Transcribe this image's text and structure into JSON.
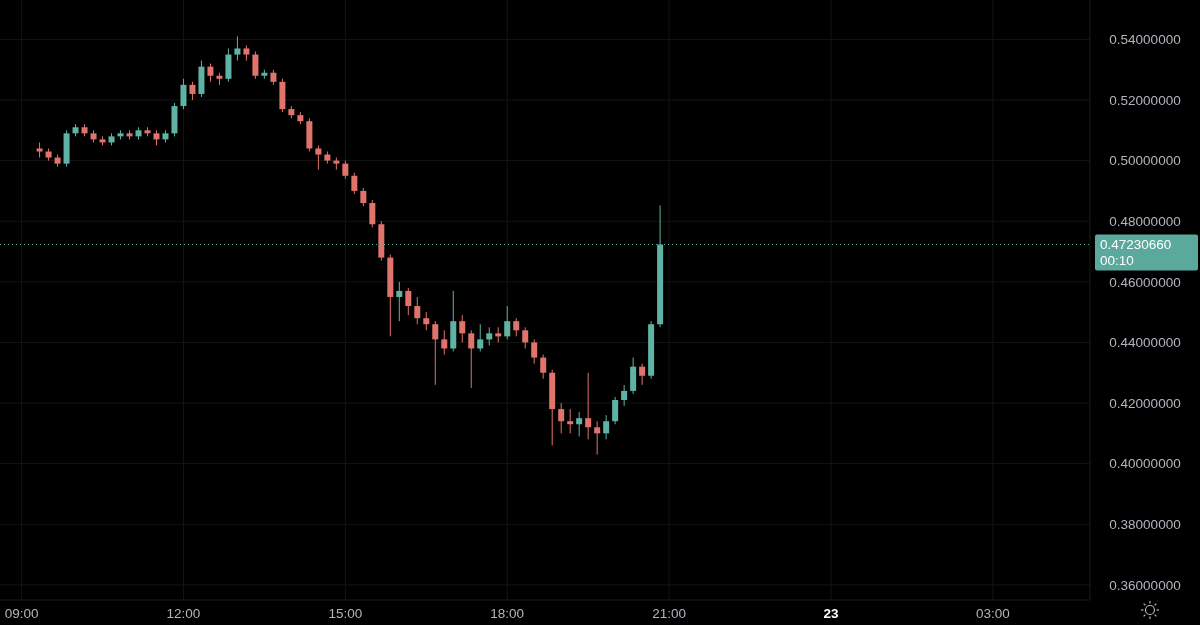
{
  "chart_data": {
    "type": "candlestick",
    "x": [
      "--12-22T09:20",
      "--12-22T09:30",
      "--12-22T09:40",
      "--12-22T09:50",
      "--12-22T10:00",
      "--12-22T10:10",
      "--12-22T10:20",
      "--12-22T10:30",
      "--12-22T10:40",
      "--12-22T10:50",
      "--12-22T11:00",
      "--12-22T11:10",
      "--12-22T11:20",
      "--12-22T11:30",
      "--12-22T11:40",
      "--12-22T11:50",
      "--12-22T12:00",
      "--12-22T12:10",
      "--12-22T12:20",
      "--12-22T12:30",
      "--12-22T12:40",
      "--12-22T12:50",
      "--12-22T13:00",
      "--12-22T13:10",
      "--12-22T13:20",
      "--12-22T13:30",
      "--12-22T13:40",
      "--12-22T13:50",
      "--12-22T14:00",
      "--12-22T14:10",
      "--12-22T14:20",
      "--12-22T14:30",
      "--12-22T14:40",
      "--12-22T14:50",
      "--12-22T15:00",
      "--12-22T15:10",
      "--12-22T15:20",
      "--12-22T15:30",
      "--12-22T15:40",
      "--12-22T15:50",
      "--12-22T16:00",
      "--12-22T16:10",
      "--12-22T16:20",
      "--12-22T16:30",
      "--12-22T16:40",
      "--12-22T16:50",
      "--12-22T17:00",
      "--12-22T17:10",
      "--12-22T17:20",
      "--12-22T17:30",
      "--12-22T17:40",
      "--12-22T17:50",
      "--12-22T18:00",
      "--12-22T18:10",
      "--12-22T18:20",
      "--12-22T18:30",
      "--12-22T18:40",
      "--12-22T18:50",
      "--12-22T19:00",
      "--12-22T19:10",
      "--12-22T19:20",
      "--12-22T19:30",
      "--12-22T19:40",
      "--12-22T19:50",
      "--12-22T20:00",
      "--12-22T20:10",
      "--12-22T20:20",
      "--12-22T20:30",
      "--12-22T20:40",
      "--12-22T20:50"
    ],
    "ohlc": [
      [
        0.504,
        0.506,
        0.501,
        0.503
      ],
      [
        0.503,
        0.504,
        0.5,
        0.501
      ],
      [
        0.501,
        0.502,
        0.498,
        0.499
      ],
      [
        0.499,
        0.51,
        0.498,
        0.509
      ],
      [
        0.509,
        0.512,
        0.508,
        0.511
      ],
      [
        0.511,
        0.512,
        0.508,
        0.509
      ],
      [
        0.509,
        0.51,
        0.506,
        0.507
      ],
      [
        0.507,
        0.508,
        0.505,
        0.506
      ],
      [
        0.506,
        0.509,
        0.505,
        0.508
      ],
      [
        0.508,
        0.51,
        0.507,
        0.509
      ],
      [
        0.509,
        0.51,
        0.507,
        0.508
      ],
      [
        0.508,
        0.511,
        0.507,
        0.51
      ],
      [
        0.51,
        0.511,
        0.508,
        0.509
      ],
      [
        0.509,
        0.51,
        0.505,
        0.507
      ],
      [
        0.507,
        0.51,
        0.506,
        0.509
      ],
      [
        0.509,
        0.519,
        0.508,
        0.518
      ],
      [
        0.518,
        0.527,
        0.517,
        0.525
      ],
      [
        0.525,
        0.526,
        0.52,
        0.522
      ],
      [
        0.522,
        0.533,
        0.521,
        0.531
      ],
      [
        0.531,
        0.532,
        0.526,
        0.528
      ],
      [
        0.528,
        0.529,
        0.525,
        0.527
      ],
      [
        0.527,
        0.537,
        0.526,
        0.535
      ],
      [
        0.535,
        0.541,
        0.533,
        0.537
      ],
      [
        0.537,
        0.538,
        0.533,
        0.535
      ],
      [
        0.535,
        0.536,
        0.527,
        0.528
      ],
      [
        0.528,
        0.53,
        0.527,
        0.529
      ],
      [
        0.529,
        0.53,
        0.525,
        0.526
      ],
      [
        0.526,
        0.527,
        0.516,
        0.517
      ],
      [
        0.517,
        0.518,
        0.514,
        0.515
      ],
      [
        0.515,
        0.516,
        0.512,
        0.513
      ],
      [
        0.513,
        0.514,
        0.503,
        0.504
      ],
      [
        0.504,
        0.505,
        0.497,
        0.502
      ],
      [
        0.502,
        0.503,
        0.499,
        0.5
      ],
      [
        0.5,
        0.501,
        0.497,
        0.499
      ],
      [
        0.499,
        0.5,
        0.494,
        0.495
      ],
      [
        0.495,
        0.496,
        0.489,
        0.49
      ],
      [
        0.49,
        0.491,
        0.485,
        0.486
      ],
      [
        0.486,
        0.487,
        0.478,
        0.479
      ],
      [
        0.479,
        0.48,
        0.467,
        0.468
      ],
      [
        0.468,
        0.469,
        0.442,
        0.455
      ],
      [
        0.455,
        0.46,
        0.447,
        0.457
      ],
      [
        0.457,
        0.458,
        0.449,
        0.452
      ],
      [
        0.452,
        0.455,
        0.446,
        0.448
      ],
      [
        0.448,
        0.45,
        0.444,
        0.446
      ],
      [
        0.446,
        0.447,
        0.426,
        0.441
      ],
      [
        0.441,
        0.444,
        0.436,
        0.438
      ],
      [
        0.438,
        0.457,
        0.437,
        0.447
      ],
      [
        0.447,
        0.449,
        0.44,
        0.443
      ],
      [
        0.443,
        0.444,
        0.425,
        0.438
      ],
      [
        0.438,
        0.446,
        0.437,
        0.441
      ],
      [
        0.441,
        0.445,
        0.439,
        0.443
      ],
      [
        0.443,
        0.445,
        0.44,
        0.442
      ],
      [
        0.442,
        0.452,
        0.441,
        0.447
      ],
      [
        0.447,
        0.448,
        0.442,
        0.444
      ],
      [
        0.444,
        0.445,
        0.438,
        0.44
      ],
      [
        0.44,
        0.441,
        0.433,
        0.435
      ],
      [
        0.435,
        0.436,
        0.428,
        0.43
      ],
      [
        0.43,
        0.431,
        0.406,
        0.418
      ],
      [
        0.418,
        0.42,
        0.41,
        0.414
      ],
      [
        0.414,
        0.418,
        0.41,
        0.413
      ],
      [
        0.413,
        0.417,
        0.409,
        0.415
      ],
      [
        0.415,
        0.43,
        0.408,
        0.412
      ],
      [
        0.412,
        0.414,
        0.403,
        0.41
      ],
      [
        0.41,
        0.416,
        0.408,
        0.414
      ],
      [
        0.414,
        0.422,
        0.413,
        0.421
      ],
      [
        0.421,
        0.426,
        0.419,
        0.424
      ],
      [
        0.424,
        0.435,
        0.423,
        0.432
      ],
      [
        0.432,
        0.433,
        0.426,
        0.429
      ],
      [
        0.429,
        0.447,
        0.428,
        0.446
      ],
      [
        0.446,
        0.4852,
        0.445,
        0.4723066
      ]
    ],
    "xlim": [
      "--12-22T08:36",
      "--12-23T04:48"
    ],
    "xticks": [
      {
        "value": "--12-22T09:00",
        "label": "09:00"
      },
      {
        "value": "--12-22T12:00",
        "label": "12:00"
      },
      {
        "value": "--12-22T15:00",
        "label": "15:00"
      },
      {
        "value": "--12-22T18:00",
        "label": "18:00"
      },
      {
        "value": "--12-22T21:00",
        "label": "21:00"
      },
      {
        "value": "--12-23",
        "label": "23"
      },
      {
        "value": "--12-23T03:00",
        "label": "03:00"
      }
    ],
    "ylim": [
      0.355,
      0.553
    ],
    "yticks": [
      {
        "value": 0.36,
        "label": "0.36000000"
      },
      {
        "value": 0.38,
        "label": "0.38000000"
      },
      {
        "value": 0.4,
        "label": "0.40000000"
      },
      {
        "value": 0.42,
        "label": "0.42000000"
      },
      {
        "value": 0.44,
        "label": "0.44000000"
      },
      {
        "value": 0.46,
        "label": "0.46000000"
      },
      {
        "value": 0.48,
        "label": "0.48000000"
      },
      {
        "value": 0.5,
        "label": "0.50000000"
      },
      {
        "value": 0.52,
        "label": "0.52000000"
      },
      {
        "value": 0.54,
        "label": "0.54000000"
      }
    ],
    "grid": true,
    "ref_lines": [
      {
        "axis": "y",
        "value": 0.4723066,
        "label": "0.47230660\n00:10",
        "color": "#5aa99c",
        "line_style": "dotted"
      }
    ]
  }
}
